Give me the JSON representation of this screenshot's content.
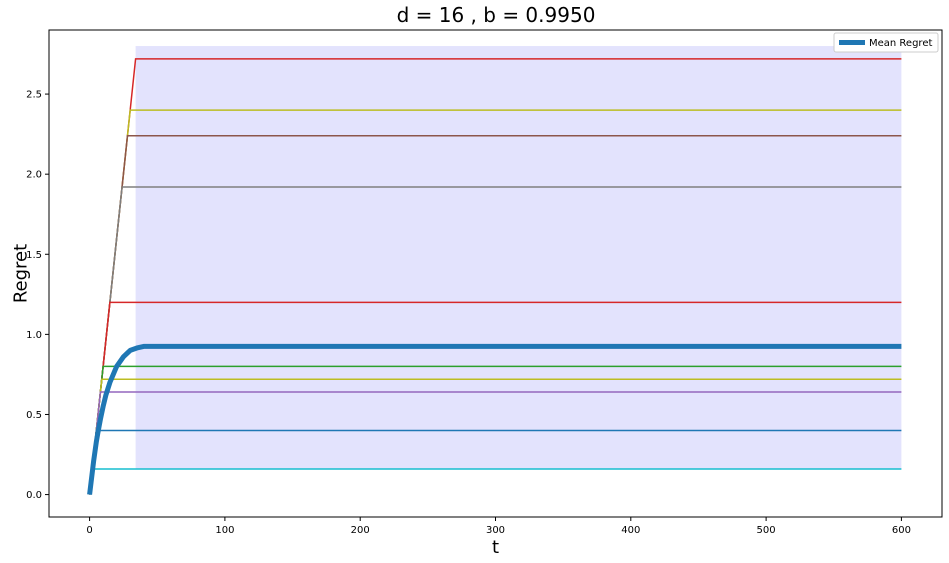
{
  "chart_data": {
    "type": "line",
    "title": "d = 16 , b = 0.9950",
    "xlabel": "t",
    "ylabel": "Regret",
    "xlim": [
      -30,
      630
    ],
    "ylim": [
      -0.14,
      2.9
    ],
    "xticks": [
      0,
      100,
      200,
      300,
      400,
      500,
      600
    ],
    "xtick_labels": [
      "0",
      "100",
      "200",
      "300",
      "400",
      "500",
      "600"
    ],
    "yticks": [
      0.0,
      0.5,
      1.0,
      1.5,
      2.0,
      2.5
    ],
    "ytick_labels": [
      "0.0",
      "0.5",
      "1.0",
      "1.5",
      "2.0",
      "2.5"
    ],
    "grid": false,
    "legend_position": "top-right",
    "band": {
      "color": "#e3e3fd",
      "x_start": 34,
      "x_end": 600,
      "y_low": 0.16,
      "y_high": 2.8
    },
    "mean_series": {
      "name": "Mean Regret",
      "color": "#1f77b4",
      "x": [
        0,
        1,
        2,
        3,
        4,
        5,
        6,
        8,
        10,
        12,
        15,
        18,
        20,
        25,
        30,
        35,
        40,
        45,
        50,
        100,
        200,
        300,
        400,
        500,
        600
      ],
      "y": [
        0.0,
        0.07,
        0.14,
        0.21,
        0.27,
        0.33,
        0.38,
        0.47,
        0.55,
        0.62,
        0.7,
        0.76,
        0.8,
        0.86,
        0.9,
        0.915,
        0.925,
        0.925,
        0.925,
        0.925,
        0.925,
        0.925,
        0.925,
        0.925,
        0.925
      ]
    },
    "series": [
      {
        "color": "#d62728",
        "x": [
          0,
          34,
          600
        ],
        "y": [
          0.0,
          2.72,
          2.72
        ]
      },
      {
        "color": "#bcbd22",
        "x": [
          0,
          30,
          600
        ],
        "y": [
          0.0,
          2.4,
          2.4
        ]
      },
      {
        "color": "#8c564b",
        "x": [
          0,
          28,
          600
        ],
        "y": [
          0.0,
          2.24,
          2.24
        ]
      },
      {
        "color": "#7f7f7f",
        "x": [
          0,
          24,
          600
        ],
        "y": [
          0.0,
          1.92,
          1.92
        ]
      },
      {
        "color": "#d62728",
        "x": [
          0,
          15,
          600
        ],
        "y": [
          0.0,
          1.2,
          1.2
        ]
      },
      {
        "color": "#2ca02c",
        "x": [
          0,
          10,
          600
        ],
        "y": [
          0.0,
          0.8,
          0.8
        ]
      },
      {
        "color": "#bcbd22",
        "x": [
          0,
          9,
          600
        ],
        "y": [
          0.0,
          0.72,
          0.72
        ]
      },
      {
        "color": "#9467bd",
        "x": [
          0,
          8,
          600
        ],
        "y": [
          0.0,
          0.64,
          0.64
        ]
      },
      {
        "color": "#1f77b4",
        "x": [
          0,
          5,
          600
        ],
        "y": [
          0.0,
          0.4,
          0.4
        ]
      },
      {
        "color": "#17becf",
        "x": [
          0,
          2,
          600
        ],
        "y": [
          0.0,
          0.16,
          0.16
        ]
      }
    ]
  }
}
